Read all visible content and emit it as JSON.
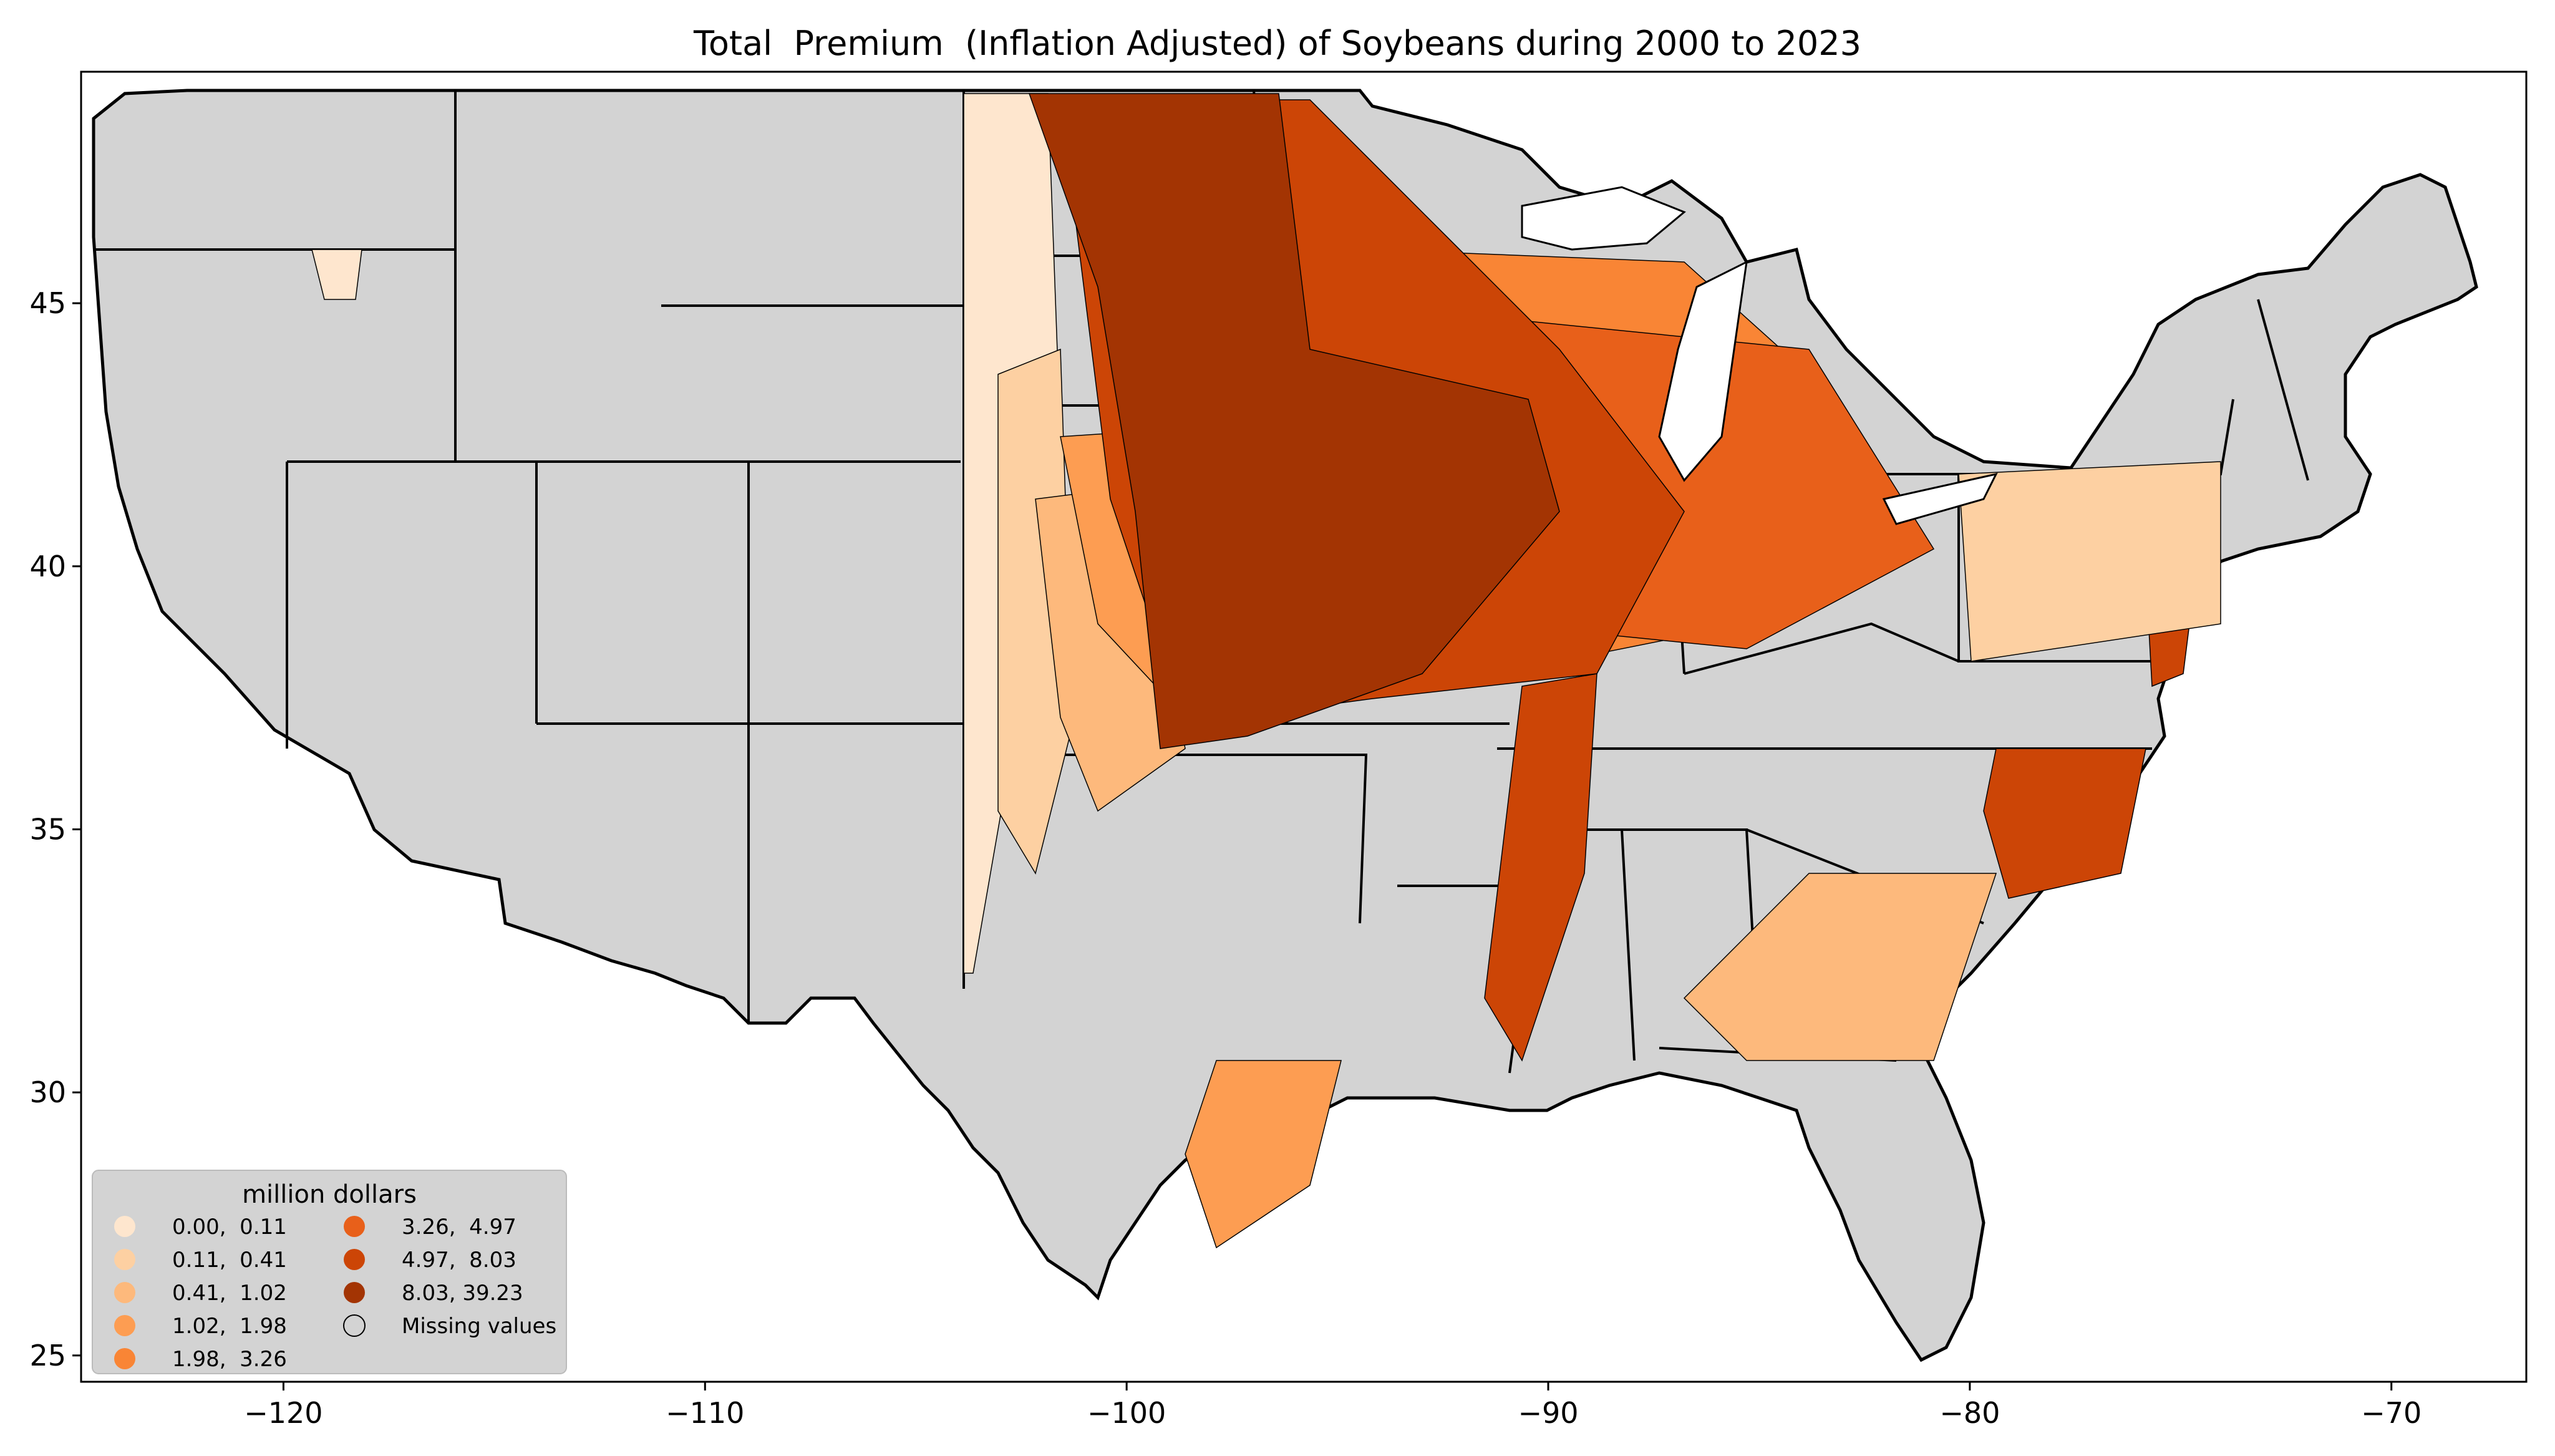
{
  "title": "Total  Premium  (Inflation Adjusted) of Soybeans during 2000 to 2023",
  "axes": {
    "x_ticks": [
      "−120",
      "−110",
      "−100",
      "−90",
      "−80",
      "−70"
    ],
    "y_ticks": [
      "45",
      "40",
      "35",
      "30",
      "25"
    ],
    "x_range": [
      -124.8,
      -66.8
    ],
    "y_range": [
      24.5,
      49.4
    ]
  },
  "legend": {
    "title": "million dollars",
    "placement": "lower-left",
    "bins": [
      {
        "label": "0.00,  0.11",
        "color": "#fee6ce"
      },
      {
        "label": "0.11,  0.41",
        "color": "#fdd0a2"
      },
      {
        "label": "0.41,  1.02",
        "color": "#fdb97c"
      },
      {
        "label": "1.02,  1.98",
        "color": "#fd9d52"
      },
      {
        "label": "1.98,  3.26",
        "color": "#f98535"
      },
      {
        "label": "3.26,  4.97",
        "color": "#e8601a"
      },
      {
        "label": "4.97,  8.03",
        "color": "#cc4506"
      },
      {
        "label": "8.03, 39.23",
        "color": "#a33403"
      },
      {
        "label": "Missing values",
        "color": "#d3d3d3"
      }
    ]
  },
  "colors": {
    "missing": "#d3d3d3",
    "border": "#000000"
  }
}
